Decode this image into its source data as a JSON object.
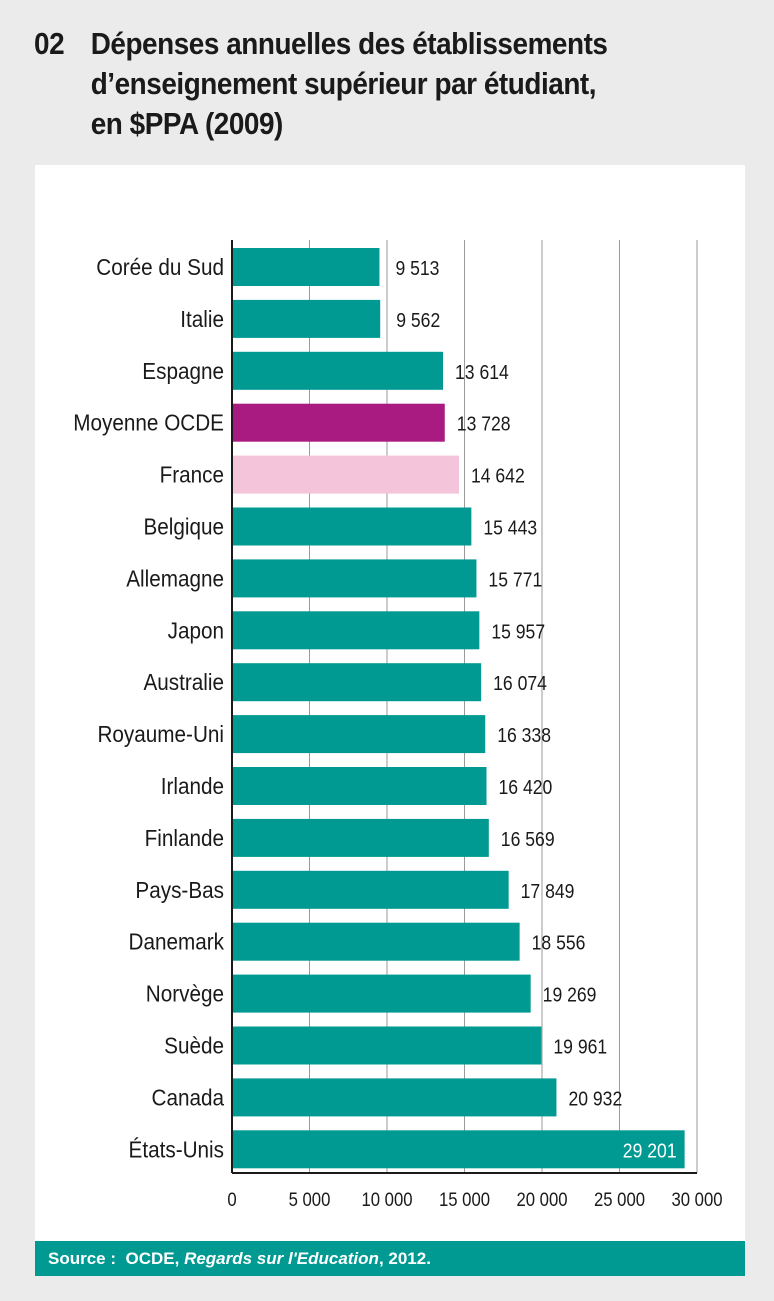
{
  "title": {
    "number": "02",
    "lines": [
      "Dépenses annuelles des établissements",
      "d’enseignement supérieur par étudiant,",
      "en $PPA (2009)"
    ]
  },
  "source": {
    "label": "Source :",
    "org": "OCDE,",
    "publication": "Regards sur l'Education",
    "year": ", 2012."
  },
  "colors": {
    "default": "#009a93",
    "oecd": "#a91b80",
    "france": "#f3c4da",
    "background": "#ebebeb"
  },
  "chart_data": {
    "type": "bar",
    "orientation": "horizontal",
    "title": "Dépenses annuelles des établissements d’enseignement supérieur par étudiant, en $PPA (2009)",
    "xlabel": "",
    "ylabel": "",
    "xlim": [
      0,
      30000
    ],
    "xticks": [
      0,
      5000,
      10000,
      15000,
      20000,
      25000,
      30000
    ],
    "xtick_labels": [
      "0",
      "5 000",
      "10 000",
      "15 000",
      "20 000",
      "25 000",
      "30 000"
    ],
    "grid": true,
    "categories": [
      "Corée du Sud",
      "Italie",
      "Espagne",
      "Moyenne OCDE",
      "France",
      "Belgique",
      "Allemagne",
      "Japon",
      "Australie",
      "Royaume-Uni",
      "Irlande",
      "Finlande",
      "Pays-Bas",
      "Danemark",
      "Norvège",
      "Suède",
      "Canada",
      "États-Unis"
    ],
    "values": [
      9513,
      9562,
      13614,
      13728,
      14642,
      15443,
      15771,
      15957,
      16074,
      16338,
      16420,
      16569,
      17849,
      18556,
      19269,
      19961,
      20932,
      29201
    ],
    "value_labels": [
      "9 513",
      "9 562",
      "13 614",
      "13 728",
      "14 642",
      "15 443",
      "15 771",
      "15 957",
      "16 074",
      "16 338",
      "16 420",
      "16 569",
      "17 849",
      "18 556",
      "19 269",
      "19 961",
      "20 932",
      "29 201"
    ],
    "highlight": {
      "Moyenne OCDE": "oecd",
      "France": "france"
    }
  }
}
